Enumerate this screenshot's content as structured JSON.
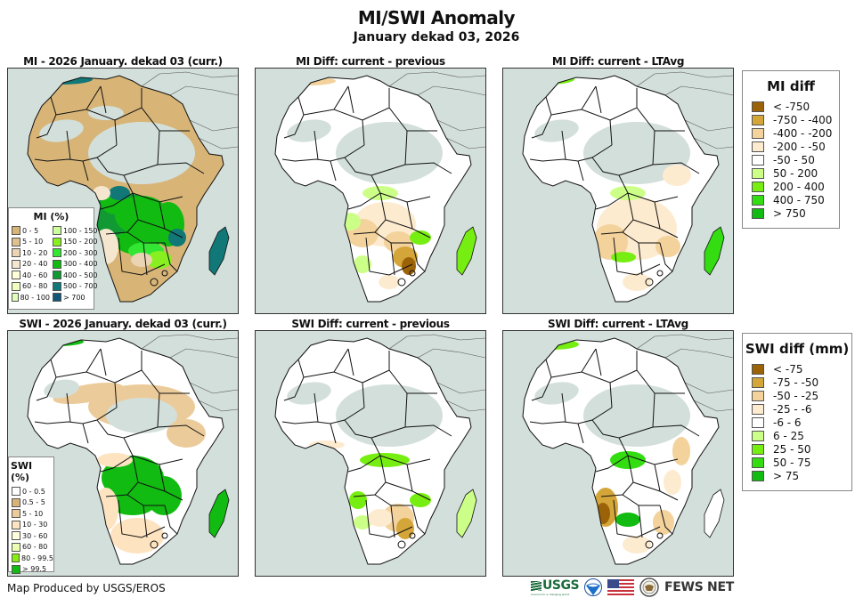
{
  "header": {
    "title": "MI/SWI Anomaly",
    "subtitle": "January dekad 03, 2026"
  },
  "panels": [
    {
      "id": "mi-curr",
      "title": "MI - 2026 January. dekad 03 (curr.)",
      "variable": "MI",
      "type": "current",
      "scheme": "mi_pct"
    },
    {
      "id": "mi-diff-prev",
      "title": "MI Diff: current - previous",
      "variable": "MI",
      "type": "diff",
      "scheme": "diff"
    },
    {
      "id": "mi-diff-lta",
      "title": "MI Diff: current - LTAvg",
      "variable": "MI",
      "type": "diff",
      "scheme": "diff"
    },
    {
      "id": "swi-curr",
      "title": "SWI - 2026 January. dekad 03 (curr.)",
      "variable": "SWI",
      "type": "current",
      "scheme": "swi_pct"
    },
    {
      "id": "swi-diff-prev",
      "title": "SWI Diff: current - previous",
      "variable": "SWI",
      "type": "diff",
      "scheme": "diff"
    },
    {
      "id": "swi-diff-lta",
      "title": "SWI Diff: current - LTAvg",
      "variable": "SWI",
      "type": "diff",
      "scheme": "diff"
    }
  ],
  "legends": {
    "mi_pct": {
      "title": "MI (%)",
      "col1": [
        {
          "label": "0 - 5",
          "color": "#d8b577"
        },
        {
          "label": "5 - 10",
          "color": "#dfc08f"
        },
        {
          "label": "10 - 20",
          "color": "#ead4b4"
        },
        {
          "label": "20 - 40",
          "color": "#f5e6d0"
        },
        {
          "label": "40 - 60",
          "color": "#ffffd8"
        },
        {
          "label": "60 - 80",
          "color": "#f0ffc0"
        },
        {
          "label": "80 - 100",
          "color": "#e0ffb8"
        }
      ],
      "col2": [
        {
          "label": "100 - 150",
          "color": "#ccff99"
        },
        {
          "label": "150 - 200",
          "color": "#88f020"
        },
        {
          "label": "200 - 300",
          "color": "#33e633"
        },
        {
          "label": "300 - 400",
          "color": "#11bb11"
        },
        {
          "label": "400 - 500",
          "color": "#119933"
        },
        {
          "label": "500 - 700",
          "color": "#117777"
        },
        {
          "label": "> 700",
          "color": "#115577"
        }
      ]
    },
    "swi_pct": {
      "title": "SWI (%)",
      "items": [
        {
          "label": "0 - 0.5",
          "color": "#ffffff"
        },
        {
          "label": "0.5 - 5",
          "color": "#d8b577"
        },
        {
          "label": "5 - 10",
          "color": "#eccb9a"
        },
        {
          "label": "10 - 30",
          "color": "#fde3c0"
        },
        {
          "label": "30 - 60",
          "color": "#ffffdc"
        },
        {
          "label": "60 - 80",
          "color": "#eaffb0"
        },
        {
          "label": "80 - 99.5",
          "color": "#88ee11"
        },
        {
          "label": "> 99.5",
          "color": "#11bb11"
        }
      ]
    },
    "mi_diff": {
      "title": "MI diff",
      "items": [
        {
          "label": "< -750",
          "color": "#9c6208"
        },
        {
          "label": "-750 - -400",
          "color": "#d4a63a"
        },
        {
          "label": "-400 - -200",
          "color": "#f3d29c"
        },
        {
          "label": "-200 - -50",
          "color": "#fdebd0"
        },
        {
          "label": "-50 - 50",
          "color": "#ffffff"
        },
        {
          "label": "50 - 200",
          "color": "#ccff88"
        },
        {
          "label": "200 - 400",
          "color": "#77ee11"
        },
        {
          "label": "400 - 750",
          "color": "#33dd11"
        },
        {
          "label": "> 750",
          "color": "#11bb11"
        }
      ]
    },
    "swi_diff": {
      "title": "SWI diff (mm)",
      "items": [
        {
          "label": "< -75",
          "color": "#9c6208"
        },
        {
          "label": "-75 - -50",
          "color": "#d4a63a"
        },
        {
          "label": "-50 - -25",
          "color": "#f3d29c"
        },
        {
          "label": "-25 - -6",
          "color": "#fdebd0"
        },
        {
          "label": "-6 - 6",
          "color": "#ffffff"
        },
        {
          "label": "6 - 25",
          "color": "#ccff88"
        },
        {
          "label": "25 - 50",
          "color": "#77ee11"
        },
        {
          "label": "50 - 75",
          "color": "#33dd11"
        },
        {
          "label": "> 75",
          "color": "#11bb11"
        }
      ]
    }
  },
  "map_colors": {
    "ocean": "#d3dfdb",
    "nodata": "#d3dfdb",
    "border": "#111111"
  },
  "footer": {
    "credit": "Map Produced by USGS/EROS",
    "logos": [
      {
        "name": "USGS",
        "label": "USGS",
        "tagline": "science for a changing world"
      },
      {
        "name": "NOAA",
        "label": ""
      },
      {
        "name": "US Flag",
        "label": ""
      },
      {
        "name": "State Department Seal",
        "label": ""
      },
      {
        "name": "FEWS NET",
        "label": "FEWS NET"
      }
    ]
  }
}
